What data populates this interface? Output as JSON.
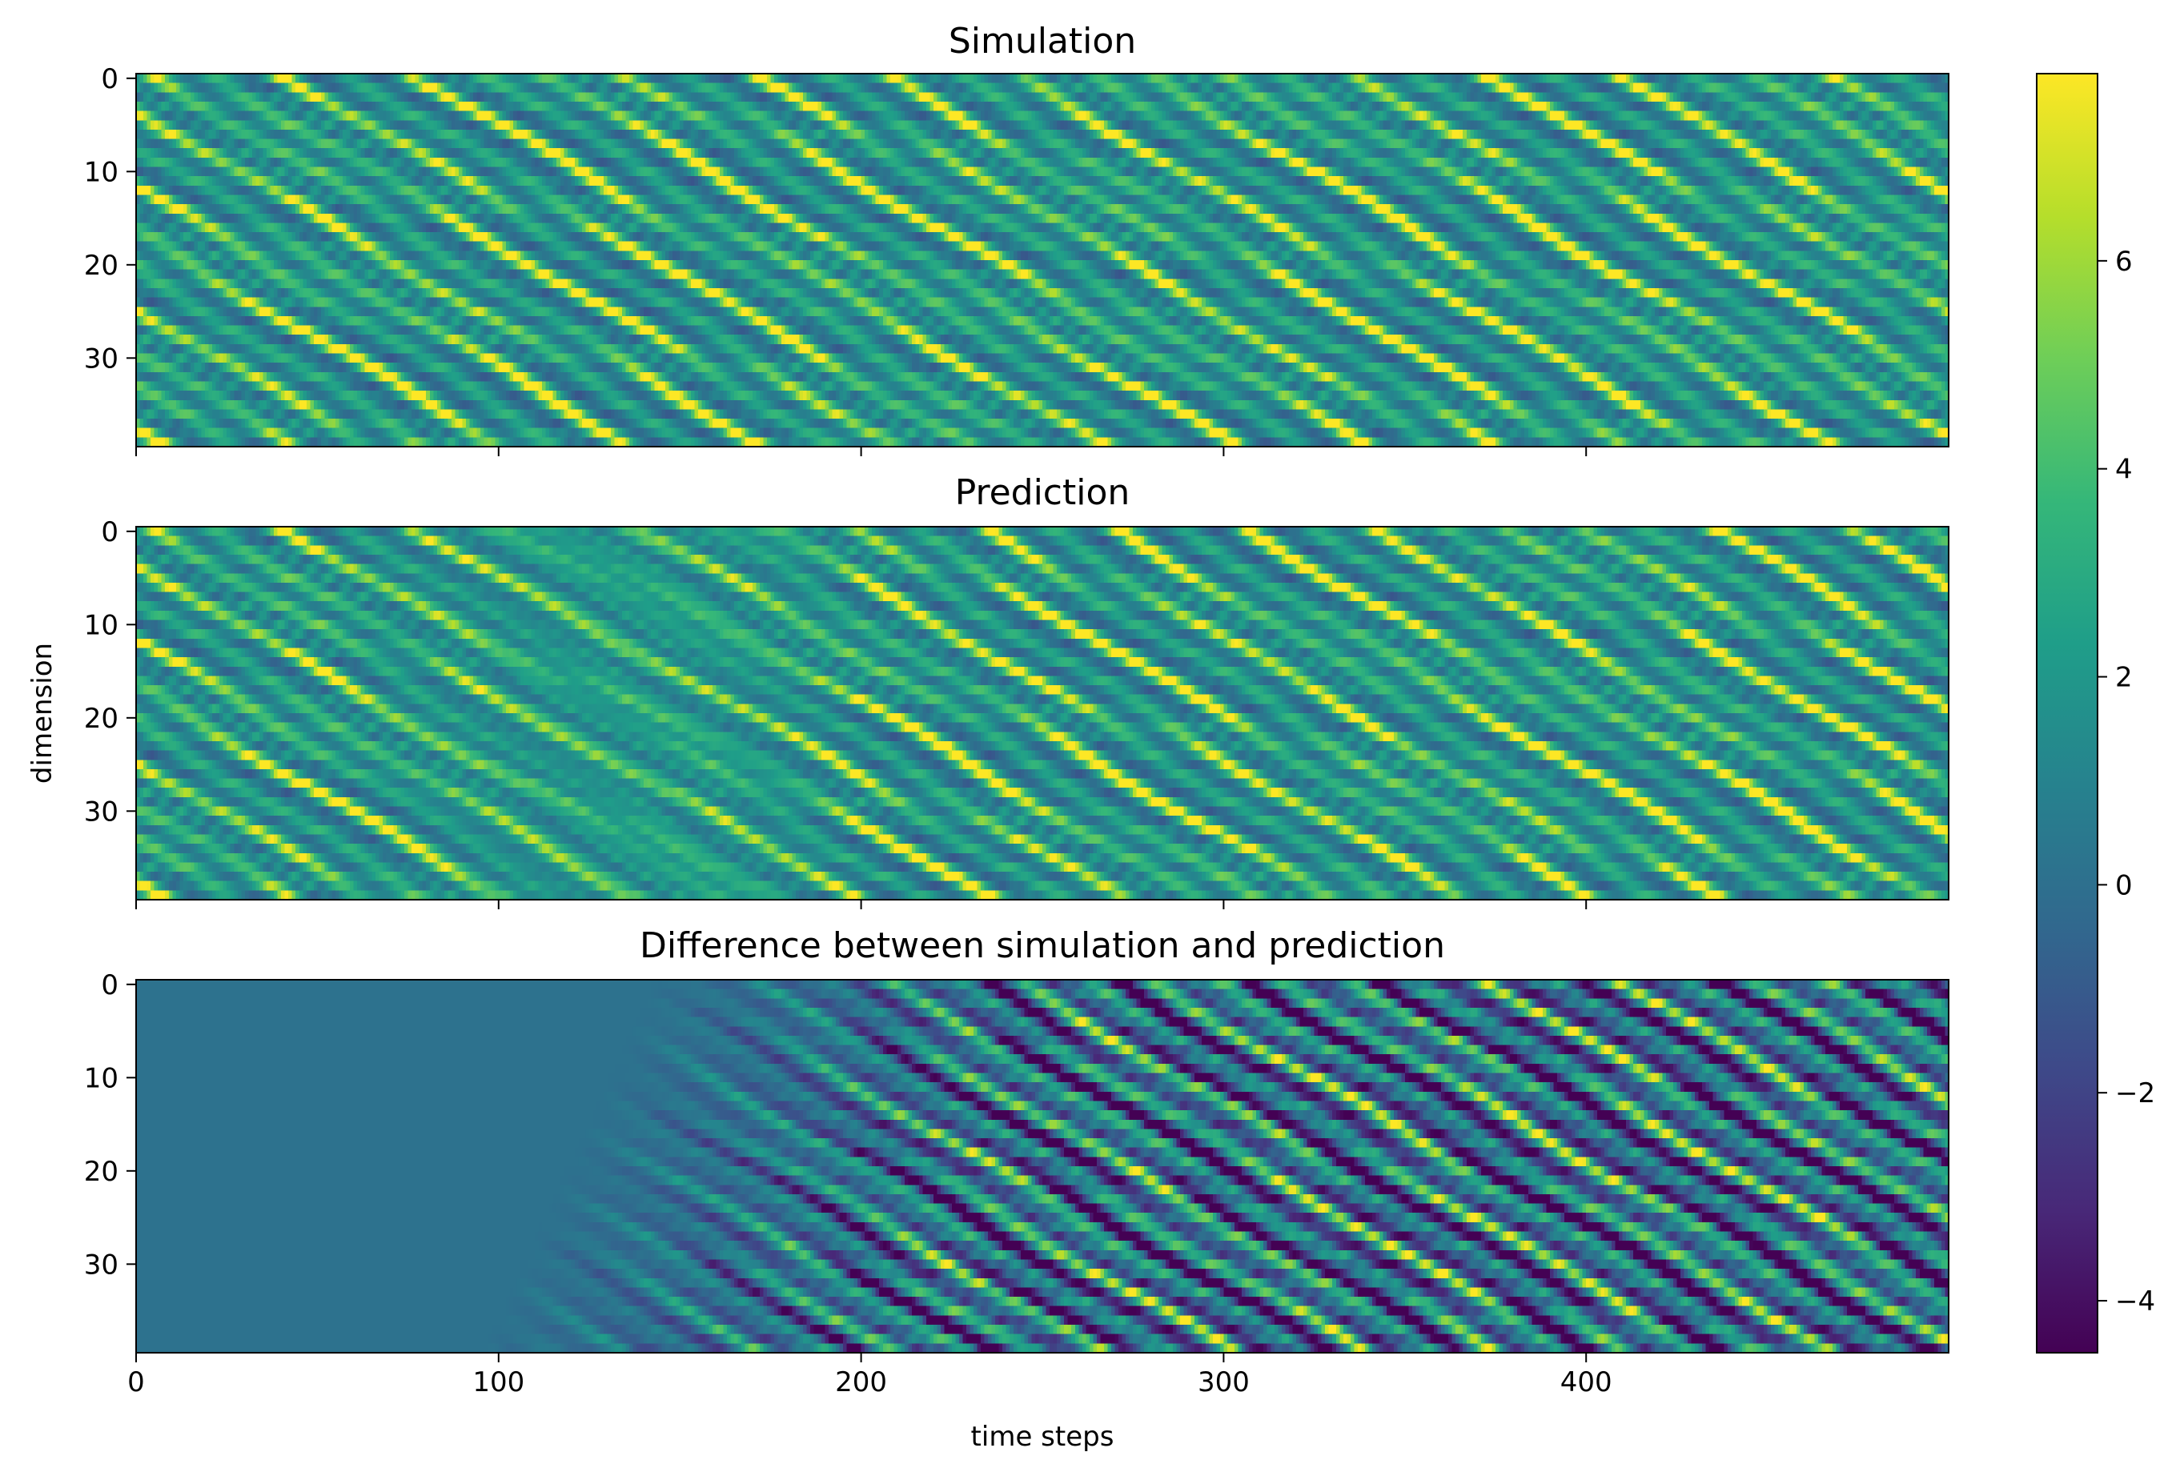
{
  "chart_data": [
    {
      "type": "heatmap",
      "title": "Simulation",
      "xlabel": "",
      "ylabel": "",
      "xlim": [
        0,
        500
      ],
      "ylim": [
        40,
        0
      ],
      "x_ticks": [
        "0",
        "100",
        "200",
        "300",
        "400"
      ],
      "y_ticks": [
        "0",
        "10",
        "20",
        "30"
      ],
      "rows": 40,
      "cols": 500,
      "pattern": "diagonal traveling waves, values ≈ -4.5…7.8 everywhere"
    },
    {
      "type": "heatmap",
      "title": "Prediction",
      "xlabel": "",
      "ylabel": "dimension",
      "xlim": [
        0,
        500
      ],
      "ylim": [
        40,
        0
      ],
      "x_ticks": [
        "0",
        "100",
        "200",
        "300",
        "400"
      ],
      "y_ticks": [
        "0",
        "10",
        "20",
        "30"
      ],
      "rows": 40,
      "cols": 500,
      "pattern": "diagonal traveling waves, matches Simulation early then diverges"
    },
    {
      "type": "heatmap",
      "title": "Difference between simulation and prediction",
      "xlabel": "time steps",
      "ylabel": "",
      "xlim": [
        0,
        500
      ],
      "ylim": [
        40,
        0
      ],
      "x_ticks": [
        "0",
        "100",
        "200",
        "300",
        "400"
      ],
      "y_ticks": [
        "0",
        "10",
        "20",
        "30"
      ],
      "rows": 40,
      "cols": 500,
      "pattern": "≈0 for t<~100, then growing error beyond ~t=150"
    }
  ],
  "colorbar": {
    "colormap": "viridis",
    "range": [
      -4.5,
      7.8
    ],
    "ticks": [
      "−4",
      "−2",
      "0",
      "2",
      "4",
      "6"
    ],
    "tick_values": [
      -4,
      -2,
      0,
      2,
      4,
      6
    ]
  }
}
